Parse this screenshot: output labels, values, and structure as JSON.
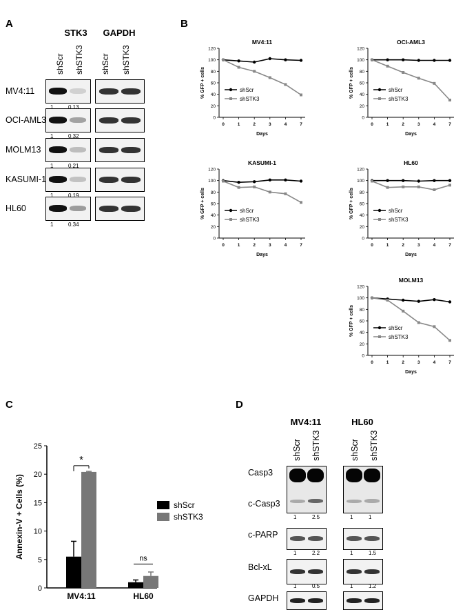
{
  "panelA": {
    "label": "A",
    "col_headers": [
      "STK3",
      "GAPDH"
    ],
    "lane_labels": [
      "shScr",
      "shSTK3"
    ],
    "rows": [
      {
        "cell": "MV4:11",
        "q1": "1",
        "q2": "0.13"
      },
      {
        "cell": "OCI-AML3",
        "q1": "1",
        "q2": "0.32"
      },
      {
        "cell": "MOLM13",
        "q1": "1",
        "q2": "0.21"
      },
      {
        "cell": "KASUMI-1",
        "q1": "1",
        "q2": "0.19"
      },
      {
        "cell": "HL60",
        "q1": "1",
        "q2": "0.34"
      }
    ]
  },
  "panelB": {
    "label": "B"
  },
  "panelC": {
    "label": "C",
    "sig": "*",
    "ns": "ns"
  },
  "panelD": {
    "label": "D",
    "groups": [
      "MV4:11",
      "HL60"
    ],
    "lane_labels": [
      "shScr",
      "shSTK3"
    ],
    "rows": [
      {
        "name": "Casp3",
        "q": null
      },
      {
        "name": "c-Casp3",
        "q": [
          [
            "1",
            "2.5"
          ],
          [
            "1",
            "1"
          ]
        ]
      },
      {
        "name": "c-PARP",
        "q": [
          [
            "1",
            "2.2"
          ],
          [
            "1",
            "1.5"
          ]
        ]
      },
      {
        "name": "Bcl-xL",
        "q": [
          [
            "1",
            "0.5"
          ],
          [
            "1",
            "1.2"
          ]
        ]
      },
      {
        "name": "GAPDH",
        "q": null
      }
    ]
  },
  "chart_data": [
    {
      "type": "line",
      "title": "MV4:11",
      "xlabel": "Days",
      "ylabel": "% GFP + cells",
      "categories": [
        "0",
        "1",
        "2",
        "3",
        "4",
        "7"
      ],
      "ylim": [
        0,
        120
      ],
      "legend": "left",
      "series": [
        {
          "name": "shScr",
          "values": [
            100,
            98,
            96,
            102,
            100,
            99
          ]
        },
        {
          "name": "shSTK3",
          "values": [
            100,
            87,
            80,
            69,
            57,
            39
          ]
        }
      ]
    },
    {
      "type": "line",
      "title": "OCI-AML3",
      "xlabel": "Days",
      "ylabel": "% GFP + cells",
      "categories": [
        "0",
        "1",
        "2",
        "3",
        "4",
        "7"
      ],
      "ylim": [
        0,
        120
      ],
      "legend": "left",
      "series": [
        {
          "name": "shScr",
          "values": [
            100,
            100,
            100,
            99,
            99,
            99
          ]
        },
        {
          "name": "shSTK3",
          "values": [
            100,
            89,
            78,
            68,
            59,
            30
          ]
        }
      ]
    },
    {
      "type": "line",
      "title": "KASUMI-1",
      "xlabel": "Days",
      "ylabel": "% GFP + cells",
      "categories": [
        "0",
        "1",
        "2",
        "3",
        "4",
        "7"
      ],
      "ylim": [
        0,
        120
      ],
      "legend": "left",
      "series": [
        {
          "name": "shScr",
          "values": [
            100,
            97,
            98,
            101,
            101,
            99
          ]
        },
        {
          "name": "shSTK3",
          "values": [
            99,
            88,
            89,
            80,
            77,
            62
          ]
        }
      ]
    },
    {
      "type": "line",
      "title": "HL60",
      "xlabel": "Days",
      "ylabel": "% GFP + cells",
      "categories": [
        "0",
        "1",
        "2",
        "3",
        "4",
        "7"
      ],
      "ylim": [
        0,
        120
      ],
      "legend": "left",
      "series": [
        {
          "name": "shScr",
          "values": [
            100,
            100,
            100,
            99,
            100,
            100
          ]
        },
        {
          "name": "shSTK3",
          "values": [
            99,
            88,
            89,
            89,
            84,
            92
          ]
        }
      ]
    },
    {
      "type": "line",
      "title": "MOLM13",
      "xlabel": "Days",
      "ylabel": "% GFP + cells",
      "categories": [
        "0",
        "1",
        "2",
        "3",
        "4",
        "7"
      ],
      "ylim": [
        0,
        120
      ],
      "legend": "left",
      "series": [
        {
          "name": "shScr",
          "values": [
            100,
            98,
            96,
            94,
            97,
            93
          ]
        },
        {
          "name": "shSTK3",
          "values": [
            100,
            96,
            77,
            57,
            50,
            26
          ]
        }
      ]
    },
    {
      "type": "bar",
      "title": "",
      "ylabel": "Annexin-V + Cells (%)",
      "categories": [
        "MV4:11",
        "HL60"
      ],
      "ylim": [
        0,
        25
      ],
      "legend": "right",
      "series": [
        {
          "name": "shScr",
          "values": [
            5.5,
            1.0
          ]
        },
        {
          "name": "shSTK3",
          "values": [
            20.4,
            2.1
          ]
        }
      ]
    }
  ]
}
